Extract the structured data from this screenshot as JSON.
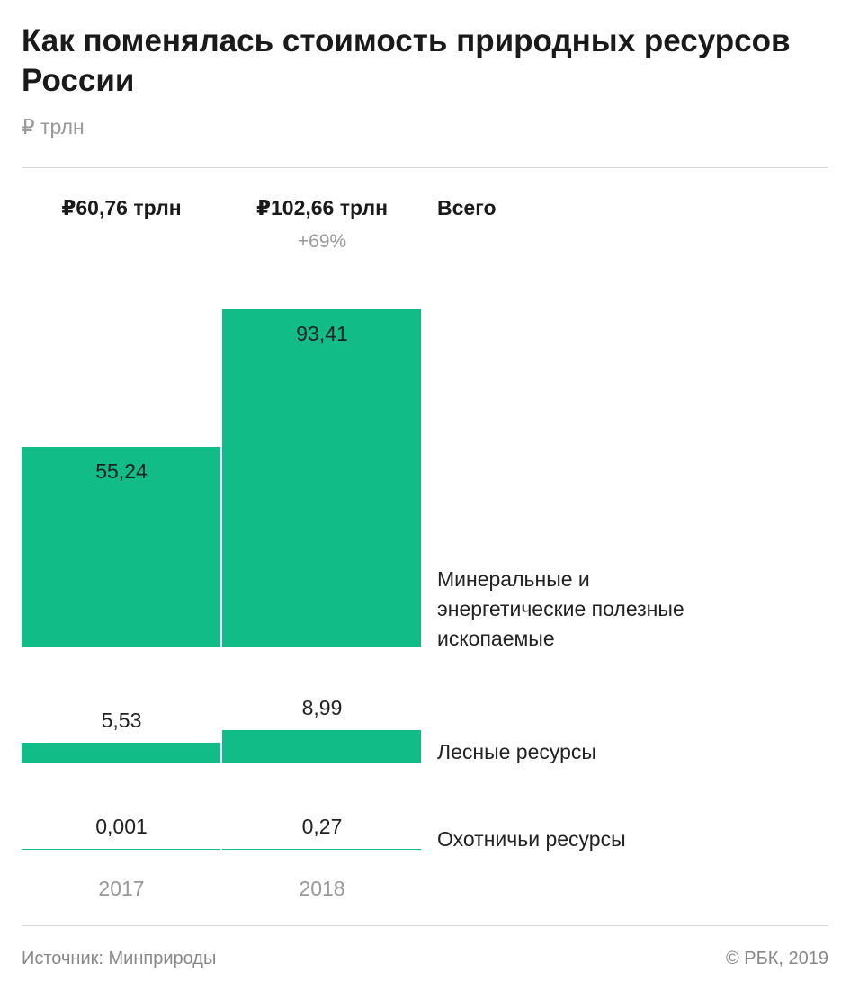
{
  "title": "Как поменялась стоимость природных ресурсов России",
  "subtitle": "₽ трлн",
  "header": {
    "totals": [
      "₽60,76 трлн",
      "₽102,66 трлн"
    ],
    "change": "+69%",
    "total_label": "Всего"
  },
  "footer": {
    "source": "Источник: Минприроды",
    "copyright": "© РБК, 2019"
  },
  "colors": {
    "bar": "#12bc86",
    "text": "#222222",
    "muted": "#999999"
  },
  "chart_data": {
    "type": "bar",
    "categories": [
      "2017",
      "2018"
    ],
    "series": [
      {
        "name": "Минеральные и энергетические полезные ископаемые",
        "values": [
          55.24,
          93.41
        ],
        "labels": [
          "55,24",
          "93,41"
        ]
      },
      {
        "name": "Лесные ресурсы",
        "values": [
          5.53,
          8.99
        ],
        "labels": [
          "5,53",
          "8,99"
        ]
      },
      {
        "name": "Охотничьи ресурсы",
        "values": [
          0.001,
          0.27
        ],
        "labels": [
          "0,001",
          "0,27"
        ]
      }
    ],
    "totals": [
      60.76,
      102.66
    ]
  }
}
